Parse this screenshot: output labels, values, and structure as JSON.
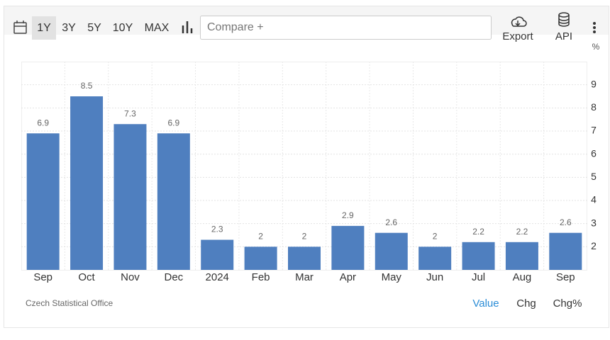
{
  "toolbar": {
    "ranges": [
      "1Y",
      "3Y",
      "5Y",
      "10Y",
      "MAX"
    ],
    "compare": "Compare +",
    "export": "Export",
    "api": "API"
  },
  "chart_data": {
    "type": "bar",
    "categories": [
      "Sep",
      "Oct",
      "Nov",
      "Dec",
      "2024",
      "Feb",
      "Mar",
      "Apr",
      "May",
      "Jun",
      "Jul",
      "Aug",
      "Sep"
    ],
    "values": [
      6.9,
      8.5,
      7.3,
      6.9,
      2.3,
      2,
      2,
      2.9,
      2.6,
      2,
      2.2,
      2.2,
      2.6
    ],
    "color": "#4f7fbf",
    "ylabel": "%",
    "ylim": [
      1,
      10
    ],
    "yticks": [
      2,
      3,
      4,
      5,
      6,
      7,
      8,
      9
    ],
    "grid": true
  },
  "footer": {
    "source": "Czech Statistical Office",
    "modes": [
      "Value",
      "Chg",
      "Chg%"
    ]
  }
}
